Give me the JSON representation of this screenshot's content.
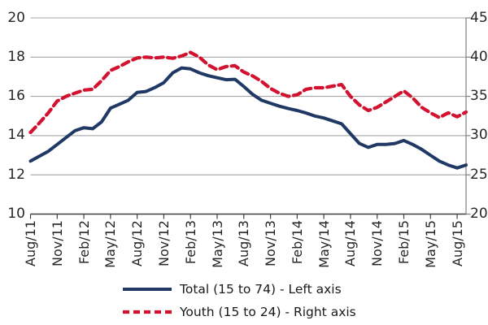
{
  "chart_data": {
    "type": "line",
    "title": "",
    "months": [
      "Aug/11",
      "Sep/11",
      "Oct/11",
      "Nov/11",
      "Dec/11",
      "Jan/12",
      "Feb/12",
      "Mar/12",
      "Apr/12",
      "May/12",
      "Jun/12",
      "Jul/12",
      "Aug/12",
      "Sep/12",
      "Oct/12",
      "Nov/12",
      "Dec/12",
      "Jan/13",
      "Feb/13",
      "Mar/13",
      "Apr/13",
      "May/13",
      "Jun/13",
      "Jul/13",
      "Aug/13",
      "Sep/13",
      "Oct/13",
      "Nov/13",
      "Dec/13",
      "Jan/14",
      "Feb/14",
      "Mar/14",
      "Apr/14",
      "May/14",
      "Jun/14",
      "Jul/14",
      "Aug/14",
      "Sep/14",
      "Oct/14",
      "Nov/14",
      "Dec/14",
      "Jan/15",
      "Feb/15",
      "Mar/15",
      "Apr/15",
      "May/15",
      "Jun/15",
      "Jul/15",
      "Aug/15",
      "Sep/15"
    ],
    "x_tick_labels": [
      "Aug/11",
      "Nov/11",
      "Feb/12",
      "May/12",
      "Aug/12",
      "Nov/12",
      "Feb/13",
      "May/13",
      "Aug/13",
      "Nov/13",
      "Feb/14",
      "May/14",
      "Aug/14",
      "Nov/14",
      "Feb/15",
      "May/15",
      "Aug/15"
    ],
    "x_tick_month_indices": [
      0,
      3,
      6,
      9,
      12,
      15,
      18,
      21,
      24,
      27,
      30,
      33,
      36,
      39,
      42,
      45,
      48
    ],
    "left_axis": {
      "range": [
        10,
        20
      ],
      "ticks": [
        20,
        18,
        16,
        14,
        12,
        10
      ]
    },
    "right_axis": {
      "range": [
        20,
        45
      ],
      "ticks": [
        45,
        40,
        35,
        30,
        25,
        20
      ]
    },
    "grid": true,
    "legend_position": "bottom",
    "series": [
      {
        "name": "Total (15 to 74) - Left axis",
        "axis": "left",
        "style": "solid",
        "color": "#1f3864",
        "values": [
          12.7,
          12.95,
          13.2,
          13.55,
          13.9,
          14.25,
          14.4,
          14.35,
          14.7,
          15.4,
          15.6,
          15.8,
          16.2,
          16.25,
          16.45,
          16.7,
          17.2,
          17.45,
          17.4,
          17.2,
          17.05,
          16.95,
          16.85,
          16.87,
          16.5,
          16.1,
          15.8,
          15.65,
          15.5,
          15.38,
          15.28,
          15.15,
          15.0,
          14.9,
          14.75,
          14.6,
          14.1,
          13.6,
          13.4,
          13.55,
          13.55,
          13.6,
          13.75,
          13.55,
          13.3,
          13.0,
          12.7,
          12.5,
          12.35,
          12.5
        ]
      },
      {
        "name": "Youth (15 to 24) - Right axis",
        "axis": "right",
        "style": "dashed",
        "color": "#d2122e",
        "values": [
          30.4,
          31.6,
          32.9,
          34.4,
          35.0,
          35.4,
          35.8,
          35.9,
          37.0,
          38.3,
          38.8,
          39.4,
          39.9,
          40.0,
          39.9,
          40.0,
          39.85,
          40.15,
          40.6,
          40.0,
          39.0,
          38.4,
          38.8,
          38.9,
          38.1,
          37.6,
          36.9,
          36.0,
          35.4,
          35.0,
          35.2,
          35.9,
          36.1,
          36.1,
          36.3,
          36.5,
          35.0,
          33.9,
          33.2,
          33.6,
          34.3,
          35.0,
          35.7,
          34.8,
          33.6,
          32.9,
          32.3,
          32.9,
          32.4,
          33.0
        ]
      }
    ],
    "colors": {
      "gridline": "#a6a6a6",
      "bottom_axis": "#404040",
      "right_axis": "#808080",
      "label_text": "#262626"
    }
  }
}
